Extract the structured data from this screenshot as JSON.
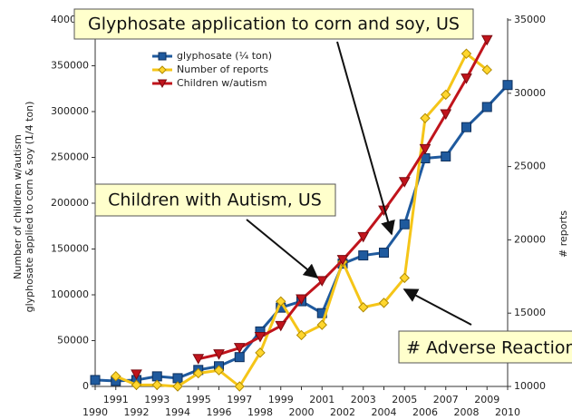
{
  "chart_data": {
    "type": "line",
    "y_label_lines": [
      "Number of children w/autism",
      "glyphosate applied to corn & soy (1/4 ton)"
    ],
    "y2_label": "# reports",
    "x": [
      1990,
      1991,
      1992,
      1993,
      1994,
      1995,
      1996,
      1997,
      1998,
      1999,
      2000,
      2001,
      2002,
      2003,
      2004,
      2005,
      2006,
      2007,
      2008,
      2009,
      2010
    ],
    "xlim": [
      1990,
      2010
    ],
    "xticks": [
      1990,
      1991,
      1992,
      1993,
      1994,
      1995,
      1996,
      1997,
      1998,
      1999,
      2000,
      2001,
      2002,
      2003,
      2004,
      2005,
      2006,
      2007,
      2008,
      2009,
      2010
    ],
    "ylim": [
      0,
      400000
    ],
    "yticks": [
      0,
      50000,
      100000,
      150000,
      200000,
      250000,
      300000,
      350000,
      400000
    ],
    "y2lim": [
      10000,
      35000
    ],
    "y2ticks": [
      10000,
      15000,
      20000,
      25000,
      30000,
      35000
    ],
    "grid": false,
    "series": [
      {
        "name": "glyphosate (¼ ton)",
        "color": "#1f5a9e",
        "marker": "square",
        "values": [
          7000,
          6000,
          7000,
          11000,
          9000,
          18000,
          22000,
          32000,
          60000,
          86000,
          93000,
          80000,
          134000,
          143000,
          146000,
          177000,
          249000,
          251000,
          283000,
          305000,
          329000
        ]
      },
      {
        "name": "Number of reports",
        "color": "#f5c518",
        "marker": "diamond",
        "axis": "y2",
        "values": [
          null,
          10700,
          10100,
          10100,
          10000,
          10900,
          11100,
          10000,
          12300,
          15800,
          13500,
          14200,
          18500,
          15400,
          15700,
          17400,
          28300,
          29900,
          32700,
          31600,
          null
        ]
      },
      {
        "name": "Children w/autism",
        "color": "#c0141c",
        "marker": "triangle",
        "values": [
          null,
          null,
          13000,
          null,
          null,
          30000,
          35000,
          42000,
          54000,
          66000,
          95000,
          115000,
          138000,
          163000,
          192000,
          223000,
          259000,
          297000,
          336000,
          378000,
          null
        ]
      }
    ],
    "annotations": [
      "Glyphosate application to corn and soy, US",
      "Children with Autism, US",
      "# Adverse Reactions"
    ]
  }
}
